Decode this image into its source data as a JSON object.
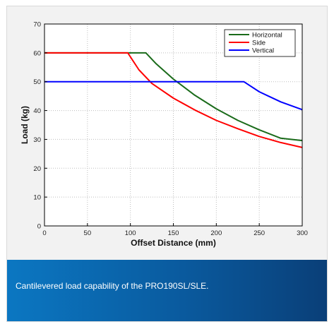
{
  "chart_data": {
    "type": "line",
    "title": "",
    "xlabel": "Offset Distance (mm)",
    "ylabel": "Load (kg)",
    "xlim": [
      0,
      300
    ],
    "ylim": [
      0,
      70
    ],
    "xticks": [
      "0",
      "50",
      "100",
      "150",
      "200",
      "250",
      "300"
    ],
    "yticks": [
      "0",
      "10",
      "20",
      "30",
      "40",
      "50",
      "60",
      "70"
    ],
    "grid": true,
    "legend_position": "top-right",
    "series": [
      {
        "name": "Horizontal",
        "color": "#1a6b1a",
        "x": [
          0,
          118,
          130,
          150,
          175,
          200,
          225,
          250,
          275,
          300
        ],
        "y": [
          60,
          60,
          56.2,
          50.9,
          45.3,
          40.6,
          36.6,
          33.3,
          30.4,
          29.6
        ]
      },
      {
        "name": "Side",
        "color": "#ff0000",
        "x": [
          0,
          97,
          110,
          125,
          150,
          175,
          200,
          225,
          250,
          275,
          300
        ],
        "y": [
          60,
          60,
          54.1,
          49.4,
          44.3,
          40.2,
          36.6,
          33.7,
          31.0,
          28.9,
          27.2
        ]
      },
      {
        "name": "Vertical",
        "color": "#0000ff",
        "x": [
          0,
          232,
          250,
          275,
          300
        ],
        "y": [
          50,
          50,
          46.5,
          43.0,
          40.3
        ]
      }
    ]
  },
  "caption": {
    "text": "Cantilevered load capability of the PRO190SL/SLE."
  }
}
